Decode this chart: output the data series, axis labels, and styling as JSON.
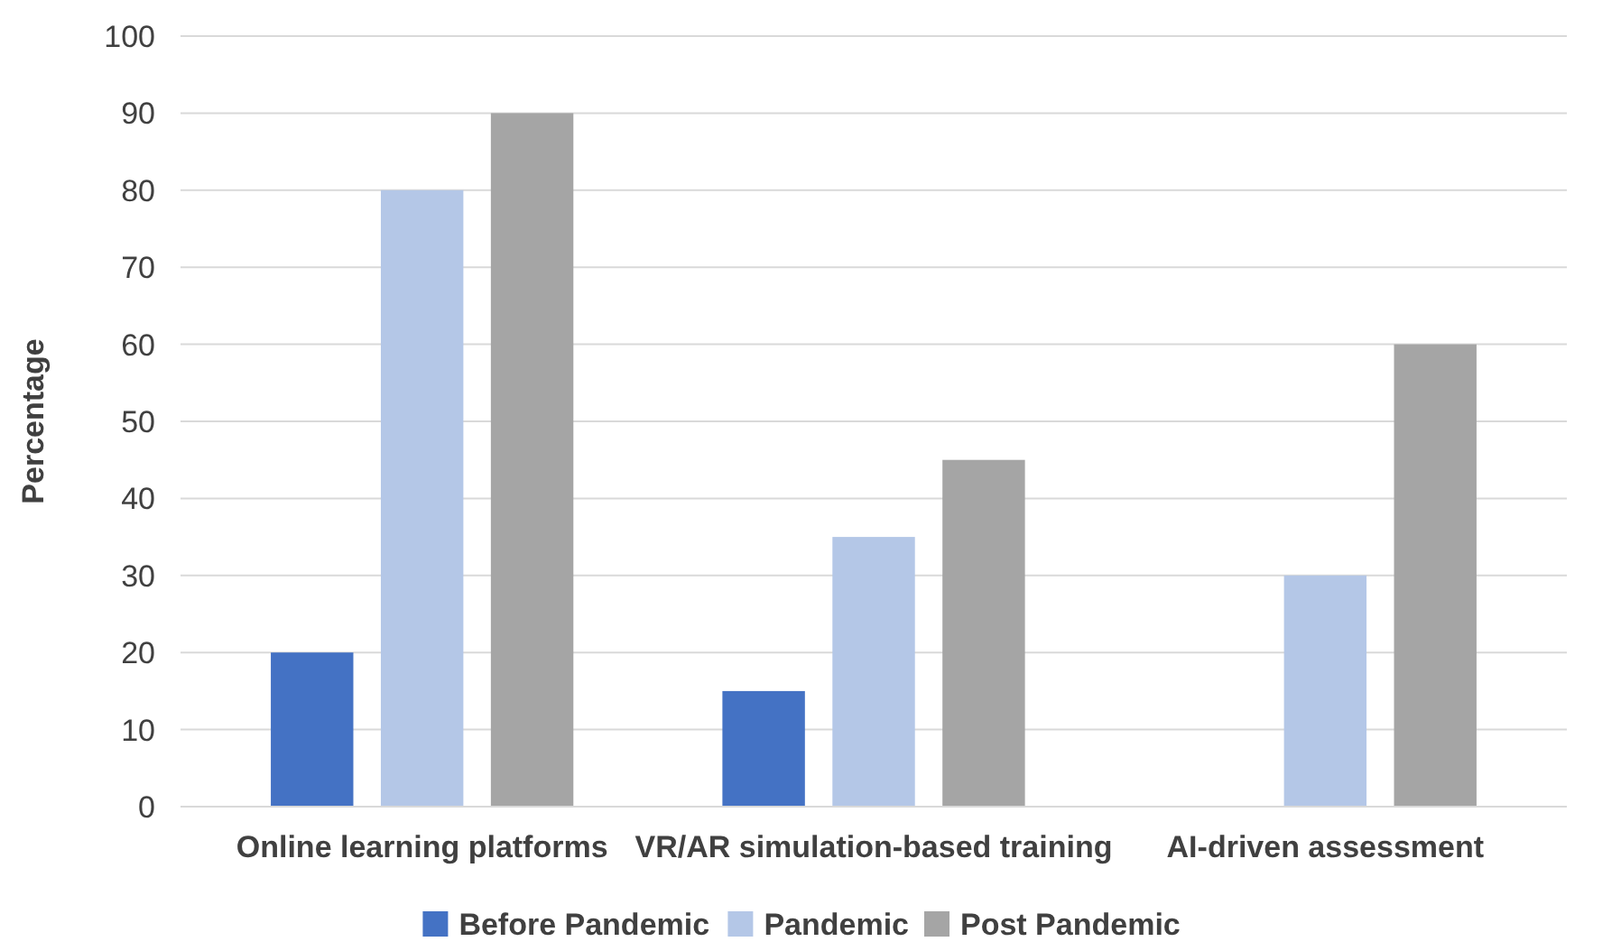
{
  "chart_data": {
    "type": "bar",
    "ylabel": "Percentage",
    "categories": [
      "Online learning platforms",
      "VR/AR simulation-based training",
      "AI-driven assessment"
    ],
    "series": [
      {
        "name": "Before Pandemic",
        "color": "#4472c4",
        "values": [
          20,
          15,
          0
        ]
      },
      {
        "name": "Pandemic",
        "color": "#b4c7e7",
        "values": [
          80,
          35,
          30
        ]
      },
      {
        "name": "Post Pandemic",
        "color": "#a5a5a5",
        "values": [
          90,
          45,
          60
        ]
      }
    ],
    "ylim": [
      0,
      100
    ],
    "yticks": [
      0,
      10,
      20,
      30,
      40,
      50,
      60,
      70,
      80,
      90,
      100
    ],
    "grid": "y",
    "legend": "bottom"
  }
}
